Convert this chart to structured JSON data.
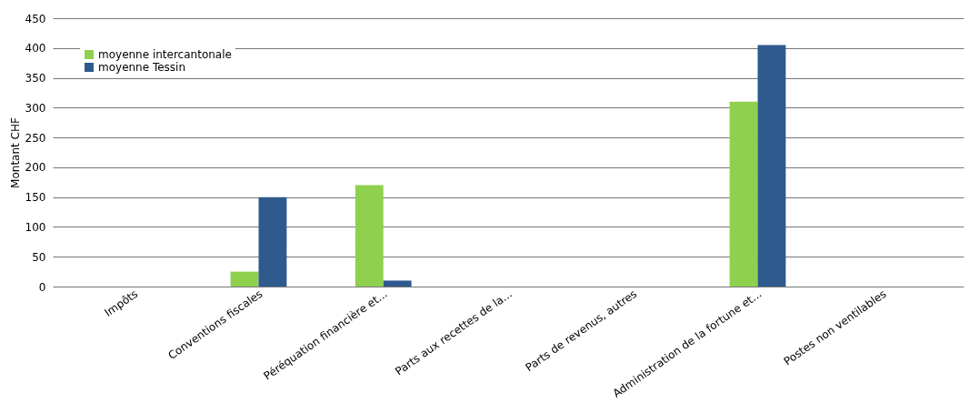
{
  "chart_data": {
    "type": "bar",
    "ylabel": "Montant CHF",
    "categories": [
      "Impôts",
      "Conventions fiscales",
      "Péréquation financière et...",
      "Parts aux recettes de la...",
      "Parts de revenus, autres",
      "Administration de la fortune et...",
      "Postes non ventilables"
    ],
    "series": [
      {
        "name": "moyenne intercantonale",
        "color": "#8fd14f",
        "values": [
          0,
          25,
          170,
          0,
          0,
          310,
          0
        ]
      },
      {
        "name": "moyenne Tessin",
        "color": "#2e5a8e",
        "values": [
          0,
          150,
          10,
          0,
          0,
          405,
          0
        ]
      }
    ],
    "ylim": [
      0,
      450
    ],
    "yticks": [
      0,
      50,
      100,
      150,
      200,
      250,
      300,
      350,
      400,
      450
    ],
    "grid": "y",
    "legend": "top left"
  }
}
